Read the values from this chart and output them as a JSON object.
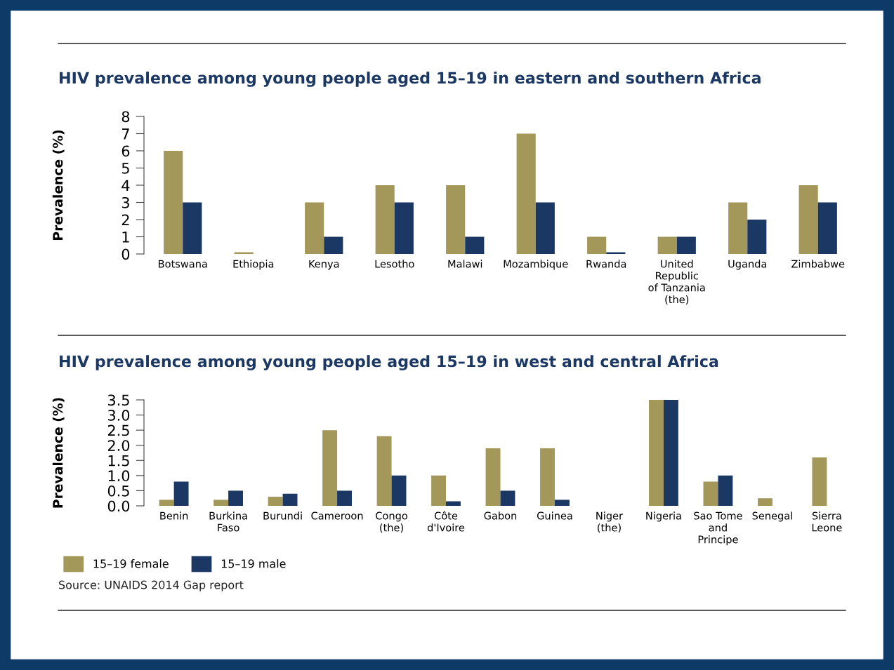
{
  "chart_data": [
    {
      "type": "bar",
      "title": "HIV prevalence among young people aged 15–19 in eastern and southern Africa",
      "ylabel": "Prevalence (%)",
      "categories": [
        "Botswana",
        "Ethiopia",
        "Kenya",
        "Lesotho",
        "Malawi",
        "Mozambique",
        "Rwanda",
        "United\nRepublic\nof Tanzania\n(the)",
        "Uganda",
        "Zimbabwe"
      ],
      "series": [
        {
          "color": "#a39759",
          "values": [
            6,
            0.1,
            3,
            4,
            4,
            7,
            1,
            1,
            3,
            4
          ]
        },
        {
          "color": "#1b3763",
          "values": [
            3,
            0,
            1,
            3,
            1,
            3,
            0.1,
            1,
            2,
            3
          ]
        }
      ],
      "ylim": [
        0,
        8
      ],
      "yticks": [
        0,
        1,
        2,
        3,
        4,
        5,
        6,
        7,
        8
      ],
      "grid": false,
      "legend": false
    },
    {
      "type": "bar",
      "title": "HIV prevalence among young people aged 15–19 in west and central Africa",
      "ylabel": "Prevalence (%)",
      "categories": [
        "Benin",
        "Burkina\nFaso",
        "Burundi",
        "Cameroon",
        "Congo\n(the)",
        "Côte\nd'Ivoire",
        "Gabon",
        "Guinea",
        "Niger\n(the)",
        "Nigeria",
        "Sao Tome\nand\nPrincipe",
        "Senegal",
        "Sierra\nLeone"
      ],
      "series": [
        {
          "name": "15–19 female",
          "color": "#a39759",
          "values": [
            0.2,
            0.2,
            0.3,
            2.5,
            2.3,
            1.0,
            1.9,
            1.9,
            0,
            3.5,
            0.8,
            0.25,
            1.6
          ]
        },
        {
          "name": "15–19 male",
          "color": "#1b3763",
          "values": [
            0.8,
            0.5,
            0.4,
            0.5,
            1.0,
            0.15,
            0.5,
            0.2,
            0,
            3.5,
            1.0,
            0,
            0
          ]
        }
      ],
      "ylim": [
        0,
        3.5
      ],
      "yticks": [
        {
          "value": 0,
          "label": "0.0"
        },
        0.5,
        {
          "value": 1,
          "label": "1.0"
        },
        1.5,
        {
          "value": 2,
          "label": "2.0"
        },
        2.5,
        {
          "value": 3,
          "label": "3.0"
        },
        3.5
      ],
      "grid": false,
      "legend": "bottom left",
      "annotations": [
        "Source: UNAIDS 2014 Gap report"
      ]
    }
  ]
}
